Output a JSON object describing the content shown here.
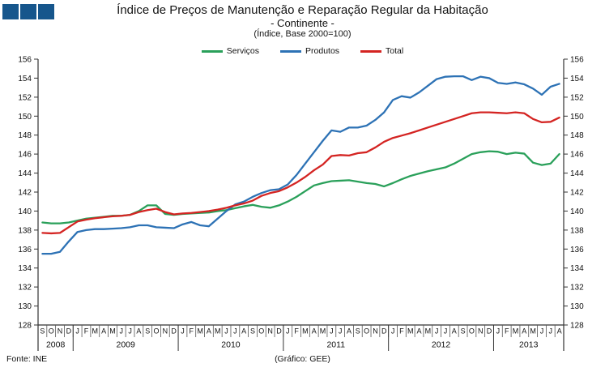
{
  "logo": {
    "square_count": 3,
    "color": "#16568c"
  },
  "header": {
    "title": "Índice de Preços de Manutenção e Reparação Regular da Habitação",
    "subtitle": "- Continente -",
    "note": "(Índice, Base 2000=100)"
  },
  "footer": {
    "source": "Fonte: INE",
    "credit": "(Gráfico: GEE)"
  },
  "chart_data": {
    "type": "line",
    "title": "Índice de Preços de Manutenção e Reparação Regular da Habitação - Continente - (Índice, Base 2000=100)",
    "xlabel": "",
    "ylabel": "",
    "ylim": [
      128,
      156
    ],
    "ytick_step": 2,
    "y_ticks": [
      128,
      130,
      132,
      134,
      136,
      138,
      140,
      142,
      144,
      146,
      148,
      150,
      152,
      154,
      156
    ],
    "grid": false,
    "legend_position": "top",
    "axis_color": "#333333",
    "x_start": "2008-09",
    "x_end": "2013-08",
    "month_letters": [
      "S",
      "O",
      "N",
      "D",
      "J",
      "F",
      "M",
      "A",
      "M",
      "J",
      "J",
      "A",
      "S",
      "O",
      "N",
      "D",
      "J",
      "F",
      "M",
      "A",
      "M",
      "J",
      "J",
      "A",
      "S",
      "O",
      "N",
      "D",
      "J",
      "F",
      "M",
      "A",
      "M",
      "J",
      "J",
      "A",
      "S",
      "O",
      "N",
      "D",
      "J",
      "F",
      "M",
      "A",
      "M",
      "J",
      "J",
      "A",
      "S",
      "O",
      "N",
      "D",
      "J",
      "F",
      "M",
      "A",
      "M",
      "J",
      "J",
      "A"
    ],
    "year_bands": [
      {
        "label": "2008",
        "months": 4
      },
      {
        "label": "2009",
        "months": 12
      },
      {
        "label": "2010",
        "months": 12
      },
      {
        "label": "2011",
        "months": 12
      },
      {
        "label": "2012",
        "months": 12
      },
      {
        "label": "2013",
        "months": 8
      }
    ],
    "series": [
      {
        "name": "Serviços",
        "color": "#2aa05a",
        "values": [
          138.8,
          138.7,
          138.7,
          138.8,
          139.0,
          139.2,
          139.3,
          139.4,
          139.5,
          139.5,
          139.6,
          140.0,
          140.6,
          140.6,
          139.7,
          139.6,
          139.7,
          139.75,
          139.8,
          139.85,
          140.0,
          140.1,
          140.3,
          140.5,
          140.65,
          140.45,
          140.35,
          140.6,
          141.0,
          141.5,
          142.1,
          142.7,
          142.95,
          143.15,
          143.2,
          143.25,
          143.1,
          142.95,
          142.85,
          142.6,
          142.95,
          143.35,
          143.7,
          143.95,
          144.2,
          144.4,
          144.6,
          145.0,
          145.5,
          146.0,
          146.2,
          146.3,
          146.25,
          146.0,
          146.15,
          146.05,
          145.1,
          144.85,
          145.0,
          146.0
        ]
      },
      {
        "name": "Produtos",
        "color": "#2d72b5",
        "values": [
          135.5,
          135.5,
          135.7,
          136.8,
          137.8,
          138.0,
          138.1,
          138.1,
          138.15,
          138.2,
          138.3,
          138.5,
          138.5,
          138.3,
          138.25,
          138.2,
          138.6,
          138.85,
          138.5,
          138.4,
          139.2,
          140.0,
          140.7,
          141.0,
          141.5,
          141.9,
          142.2,
          142.3,
          142.8,
          143.8,
          145.0,
          146.2,
          147.4,
          148.5,
          148.35,
          148.8,
          148.8,
          149.0,
          149.6,
          150.4,
          151.7,
          152.1,
          151.95,
          152.5,
          153.2,
          153.9,
          154.15,
          154.2,
          154.2,
          153.8,
          154.15,
          154.0,
          153.5,
          153.4,
          153.55,
          153.35,
          152.9,
          152.25,
          153.1,
          153.4
        ]
      },
      {
        "name": "Total",
        "color": "#d42422",
        "values": [
          137.7,
          137.65,
          137.7,
          138.3,
          138.9,
          139.1,
          139.25,
          139.35,
          139.45,
          139.5,
          139.6,
          139.9,
          140.1,
          140.25,
          139.9,
          139.65,
          139.75,
          139.8,
          139.9,
          140.0,
          140.15,
          140.35,
          140.6,
          140.8,
          141.1,
          141.6,
          141.9,
          142.1,
          142.5,
          143.0,
          143.6,
          144.3,
          144.9,
          145.8,
          145.9,
          145.85,
          146.1,
          146.2,
          146.7,
          147.3,
          147.7,
          147.95,
          148.2,
          148.5,
          148.8,
          149.1,
          149.4,
          149.7,
          150.0,
          150.3,
          150.4,
          150.4,
          150.35,
          150.3,
          150.4,
          150.3,
          149.7,
          149.35,
          149.4,
          149.85
        ]
      }
    ]
  }
}
